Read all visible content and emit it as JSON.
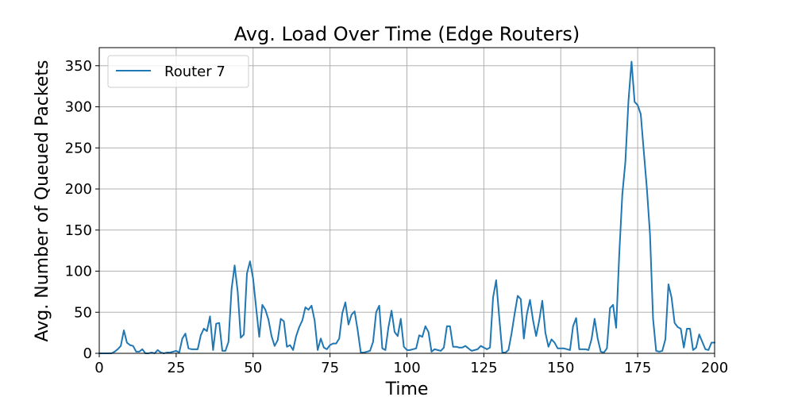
{
  "chart_data": {
    "type": "line",
    "title": "Avg. Load Over Time (Edge Routers)",
    "xlabel": "Time",
    "ylabel": "Avg. Number of Queued Packets",
    "xlim": [
      0,
      200
    ],
    "ylim": [
      0,
      372
    ],
    "xticks": [
      0,
      25,
      50,
      75,
      100,
      125,
      150,
      175,
      200
    ],
    "yticks": [
      0,
      50,
      100,
      150,
      200,
      250,
      300,
      350
    ],
    "grid": true,
    "legend_position": "top-left",
    "series": [
      {
        "name": "Router 7",
        "color": "#1f77b4",
        "x": [
          0,
          1,
          2,
          3,
          4,
          5,
          6,
          7,
          8,
          9,
          10,
          11,
          12,
          13,
          14,
          15,
          16,
          17,
          18,
          19,
          20,
          21,
          22,
          23,
          24,
          25,
          26,
          27,
          28,
          29,
          30,
          31,
          32,
          33,
          34,
          35,
          36,
          37,
          38,
          39,
          40,
          41,
          42,
          43,
          44,
          45,
          46,
          47,
          48,
          49,
          50,
          51,
          52,
          53,
          54,
          55,
          56,
          57,
          58,
          59,
          60,
          61,
          62,
          63,
          64,
          65,
          66,
          67,
          68,
          69,
          70,
          71,
          72,
          73,
          74,
          75,
          76,
          77,
          78,
          79,
          80,
          81,
          82,
          83,
          84,
          85,
          86,
          87,
          88,
          89,
          90,
          91,
          92,
          93,
          94,
          95,
          96,
          97,
          98,
          99,
          100,
          101,
          102,
          103,
          104,
          105,
          106,
          107,
          108,
          109,
          110,
          111,
          112,
          113,
          114,
          115,
          116,
          117,
          118,
          119,
          120,
          121,
          122,
          123,
          124,
          125,
          126,
          127,
          128,
          129,
          130,
          131,
          132,
          133,
          134,
          135,
          136,
          137,
          138,
          139,
          140,
          141,
          142,
          143,
          144,
          145,
          146,
          147,
          148,
          149,
          150,
          151,
          152,
          153,
          154,
          155,
          156,
          157,
          158,
          159,
          160,
          161,
          162,
          163,
          164,
          165,
          166,
          167,
          168,
          169,
          170,
          171,
          172,
          173,
          174,
          175,
          176,
          177,
          178,
          179,
          180,
          181,
          182,
          183,
          184,
          185,
          186,
          187,
          188,
          189,
          190,
          191,
          192,
          193,
          194,
          195,
          196,
          197,
          198,
          199,
          200
        ],
        "values": [
          0,
          0,
          0,
          0,
          0,
          2,
          5,
          9,
          28,
          13,
          10,
          9,
          2,
          2,
          5,
          0,
          0,
          1,
          0,
          4,
          1,
          0,
          1,
          1,
          2,
          3,
          1,
          18,
          24,
          6,
          5,
          5,
          5,
          22,
          30,
          27,
          45,
          4,
          36,
          37,
          3,
          3,
          14,
          78,
          107,
          75,
          19,
          23,
          97,
          112,
          91,
          55,
          20,
          59,
          53,
          41,
          21,
          9,
          16,
          42,
          39,
          8,
          10,
          4,
          21,
          32,
          40,
          56,
          53,
          58,
          40,
          4,
          18,
          7,
          5,
          10,
          12,
          12,
          18,
          49,
          62,
          35,
          47,
          51,
          28,
          1,
          1,
          2,
          3,
          14,
          50,
          58,
          6,
          4,
          32,
          52,
          26,
          21,
          42,
          8,
          4,
          4,
          5,
          6,
          22,
          20,
          33,
          26,
          2,
          5,
          4,
          3,
          7,
          33,
          33,
          8,
          8,
          7,
          7,
          9,
          6,
          3,
          4,
          5,
          9,
          7,
          5,
          7,
          68,
          89,
          44,
          1,
          1,
          4,
          24,
          48,
          70,
          66,
          18,
          48,
          65,
          40,
          21,
          40,
          64,
          25,
          8,
          17,
          13,
          6,
          6,
          6,
          5,
          4,
          33,
          43,
          5,
          5,
          5,
          4,
          17,
          42,
          18,
          2,
          1,
          6,
          55,
          59,
          31,
          120,
          193,
          233,
          307,
          355,
          306,
          302,
          291,
          245,
          200,
          145,
          42,
          3,
          2,
          3,
          17,
          84,
          68,
          37,
          32,
          30,
          7,
          30,
          30,
          4,
          7,
          23,
          14,
          5,
          4,
          13,
          13
        ]
      }
    ]
  }
}
